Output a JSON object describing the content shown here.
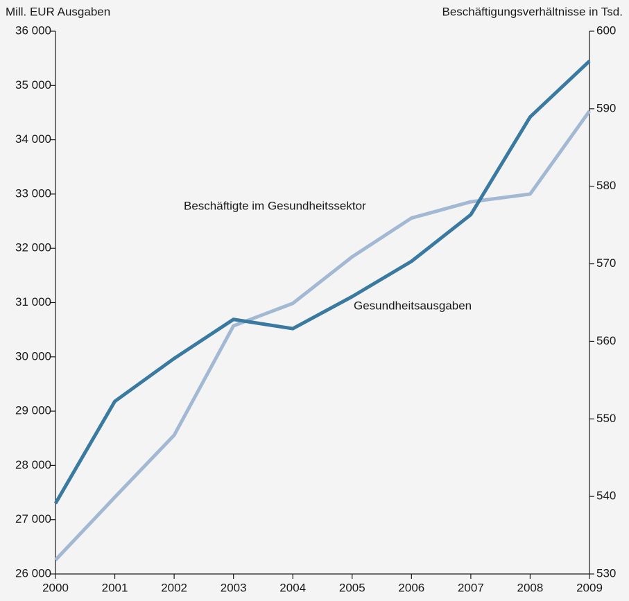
{
  "chart_data": {
    "type": "line",
    "y_label": "Mill. EUR Ausgaben",
    "y2_label": "Beschäftigungsverhältnisse in Tsd.",
    "x": [
      2000,
      2001,
      2002,
      2003,
      2004,
      2005,
      2006,
      2007,
      2008,
      2009
    ],
    "xlim": [
      2000,
      2009
    ],
    "xticks": [
      2000,
      2001,
      2002,
      2003,
      2004,
      2005,
      2006,
      2007,
      2008,
      2009
    ],
    "ylim": [
      26000,
      36000
    ],
    "yticks": [
      {
        "value": 26000,
        "label": "26 000"
      },
      {
        "value": 27000,
        "label": "27 000"
      },
      {
        "value": 28000,
        "label": "28 000"
      },
      {
        "value": 29000,
        "label": "29 000"
      },
      {
        "value": 30000,
        "label": "30 000"
      },
      {
        "value": 31000,
        "label": "31 000"
      },
      {
        "value": 32000,
        "label": "32 000"
      },
      {
        "value": 33000,
        "label": "33 000"
      },
      {
        "value": 34000,
        "label": "34 000"
      },
      {
        "value": 35000,
        "label": "35 000"
      },
      {
        "value": 36000,
        "label": "36 000"
      }
    ],
    "y2lim": [
      530,
      600
    ],
    "y2ticks": [
      530,
      540,
      550,
      560,
      570,
      580,
      590,
      600
    ],
    "series": [
      {
        "name": "Gesundheitsausgaben",
        "color": "#3a7aa0",
        "axis": "y",
        "values": [
          27300,
          29180,
          29970,
          30690,
          30520,
          31110,
          31760,
          32620,
          34420,
          35450
        ]
      },
      {
        "name": "Beschäftigte im Gesundheitssektor",
        "color": "#a3b9d3",
        "axis": "y2",
        "values": [
          531.8,
          539.9,
          547.9,
          562,
          564.9,
          570.9,
          575.9,
          578,
          579,
          589.7
        ]
      }
    ]
  }
}
